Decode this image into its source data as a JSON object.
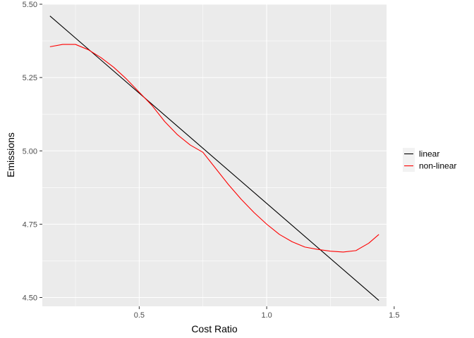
{
  "chart_data": {
    "type": "line",
    "xlabel": "Cost Ratio",
    "ylabel": "Emissions",
    "xlim": [
      0.12,
      1.47
    ],
    "ylim": [
      4.47,
      5.5
    ],
    "x_ticks": [
      0.5,
      1.0,
      1.5
    ],
    "x_tick_labels": [
      "0.5",
      "1.0",
      "1.5"
    ],
    "y_ticks": [
      4.5,
      4.75,
      5.0,
      5.25,
      5.5
    ],
    "y_tick_labels": [
      "4.50",
      "4.75",
      "5.00",
      "5.25",
      "5.50"
    ],
    "grid": true,
    "legend_position": "right",
    "series": [
      {
        "name": "linear",
        "color": "#000000",
        "x": [
          0.15,
          1.44
        ],
        "y": [
          5.46,
          4.49
        ]
      },
      {
        "name": "non-linear",
        "color": "#ff0000",
        "x": [
          0.15,
          0.2,
          0.25,
          0.3,
          0.35,
          0.4,
          0.45,
          0.5,
          0.55,
          0.6,
          0.65,
          0.7,
          0.75,
          0.8,
          0.85,
          0.9,
          0.95,
          1.0,
          1.05,
          1.1,
          1.15,
          1.2,
          1.25,
          1.3,
          1.35,
          1.4,
          1.44
        ],
        "y": [
          5.355,
          5.363,
          5.363,
          5.345,
          5.318,
          5.285,
          5.245,
          5.2,
          5.155,
          5.1,
          5.055,
          5.02,
          4.995,
          4.94,
          4.885,
          4.835,
          4.79,
          4.75,
          4.715,
          4.69,
          4.672,
          4.664,
          4.658,
          4.655,
          4.66,
          4.685,
          4.715
        ]
      }
    ]
  }
}
